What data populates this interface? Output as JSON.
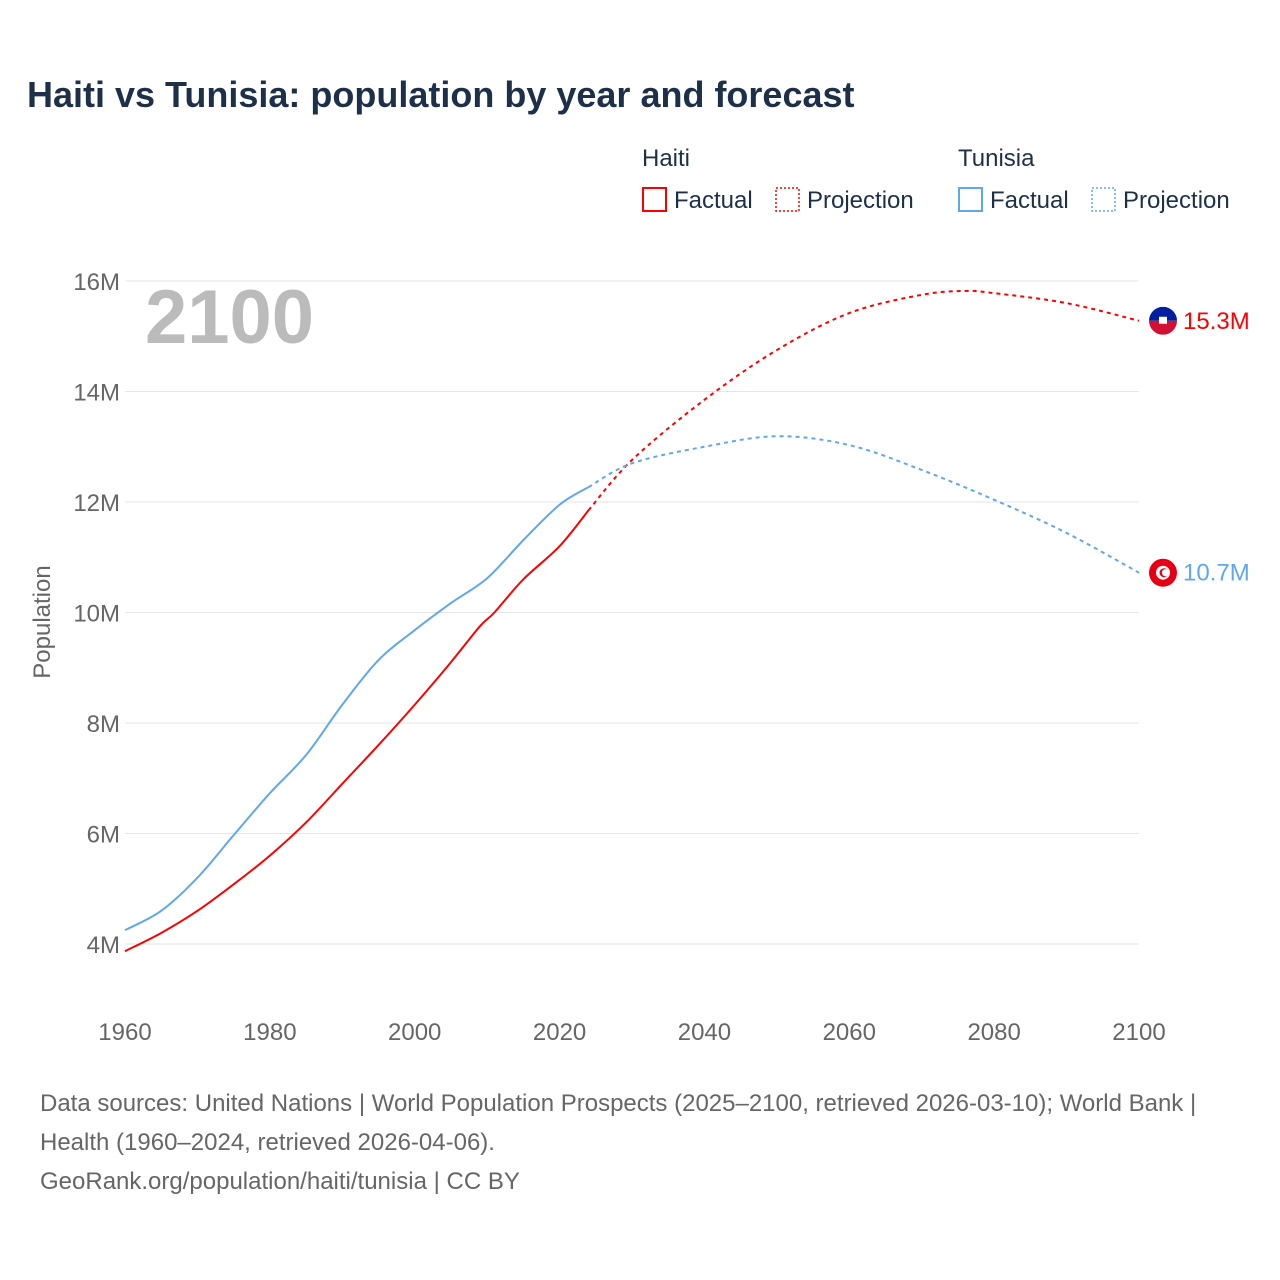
{
  "chart_data": {
    "type": "line",
    "title": "Haiti vs Tunisia: population by year and forecast",
    "ylabel": "Population",
    "xlabel": "",
    "xlim": [
      1960,
      2100
    ],
    "ylim": [
      4000000,
      16000000
    ],
    "x_ticks": [
      "1960",
      "1980",
      "2000",
      "2020",
      "2040",
      "2060",
      "2080",
      "2100"
    ],
    "y_ticks": [
      "4M",
      "6M",
      "8M",
      "10M",
      "12M",
      "14M",
      "16M"
    ],
    "grid": true,
    "year_label": "2100",
    "legend": {
      "groups": [
        {
          "name": "Haiti",
          "factual": "Factual",
          "projection": "Projection"
        },
        {
          "name": "Tunisia",
          "factual": "Factual",
          "projection": "Projection"
        }
      ],
      "placement": "top-right"
    },
    "series": [
      {
        "name": "Haiti",
        "color": "#ff0000",
        "end_label": "15.3M",
        "flag": "haiti-flag",
        "factual": [
          [
            1960,
            3.87
          ],
          [
            1965,
            4.2
          ],
          [
            1970,
            4.6
          ],
          [
            1975,
            5.08
          ],
          [
            1980,
            5.6
          ],
          [
            1985,
            6.2
          ],
          [
            1990,
            6.9
          ],
          [
            1995,
            7.6
          ],
          [
            2000,
            8.33
          ],
          [
            2005,
            9.1
          ],
          [
            2009,
            9.75
          ],
          [
            2011,
            10.0
          ],
          [
            2015,
            10.6
          ],
          [
            2020,
            11.2
          ],
          [
            2024,
            11.85
          ]
        ],
        "projection": [
          [
            2024,
            11.85
          ],
          [
            2030,
            12.76
          ],
          [
            2040,
            13.85
          ],
          [
            2050,
            14.75
          ],
          [
            2060,
            15.42
          ],
          [
            2070,
            15.75
          ],
          [
            2076,
            15.82
          ],
          [
            2080,
            15.78
          ],
          [
            2090,
            15.6
          ],
          [
            2100,
            15.28
          ]
        ]
      },
      {
        "name": "Tunisia",
        "color": "#5ea8ee",
        "end_label": "10.7M",
        "flag": "tunisia-flag",
        "factual": [
          [
            1960,
            4.25
          ],
          [
            1965,
            4.6
          ],
          [
            1970,
            5.2
          ],
          [
            1975,
            5.97
          ],
          [
            1980,
            6.73
          ],
          [
            1985,
            7.42
          ],
          [
            1990,
            8.33
          ],
          [
            1995,
            9.14
          ],
          [
            2000,
            9.68
          ],
          [
            2005,
            10.17
          ],
          [
            2010,
            10.62
          ],
          [
            2015,
            11.31
          ],
          [
            2020,
            11.95
          ],
          [
            2024,
            12.27
          ]
        ],
        "projection": [
          [
            2024,
            12.27
          ],
          [
            2030,
            12.7
          ],
          [
            2040,
            13.0
          ],
          [
            2050,
            13.19
          ],
          [
            2060,
            13.03
          ],
          [
            2070,
            12.58
          ],
          [
            2080,
            12.04
          ],
          [
            2090,
            11.44
          ],
          [
            2100,
            10.72
          ]
        ]
      }
    ]
  },
  "footer": {
    "sources": "Data sources: United Nations | World Population Prospects (2025–2100, retrieved 2026-03-10); World Bank | Health (1960–2024, retrieved 2026-04-06).",
    "credit": "GeoRank.org/population/haiti/tunisia | CC BY"
  }
}
